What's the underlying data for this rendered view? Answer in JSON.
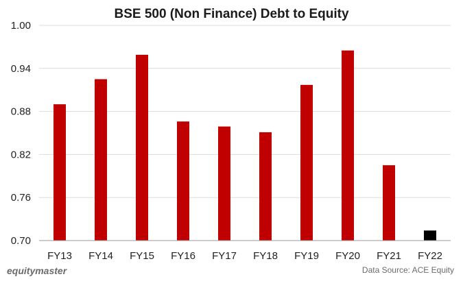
{
  "chart_data": {
    "type": "bar",
    "title": "BSE 500 (Non Finance) Debt to Equity",
    "categories": [
      "FY13",
      "FY14",
      "FY15",
      "FY16",
      "FY17",
      "FY18",
      "FY19",
      "FY20",
      "FY21",
      "FY22"
    ],
    "values": [
      0.89,
      0.925,
      0.959,
      0.866,
      0.859,
      0.851,
      0.917,
      0.965,
      0.805,
      0.714
    ],
    "bar_colors": [
      "#c00000",
      "#c00000",
      "#c00000",
      "#c00000",
      "#c00000",
      "#c00000",
      "#c00000",
      "#c00000",
      "#c00000",
      "#000000"
    ],
    "ylim": [
      0.7,
      1.0
    ],
    "yticks": [
      "0.70",
      "0.76",
      "0.82",
      "0.88",
      "0.94",
      "1.00"
    ],
    "grid": true,
    "xlabel": "",
    "ylabel": ""
  },
  "footer": {
    "brand": "equitymaster",
    "source": "Data Source: ACE Equity"
  }
}
